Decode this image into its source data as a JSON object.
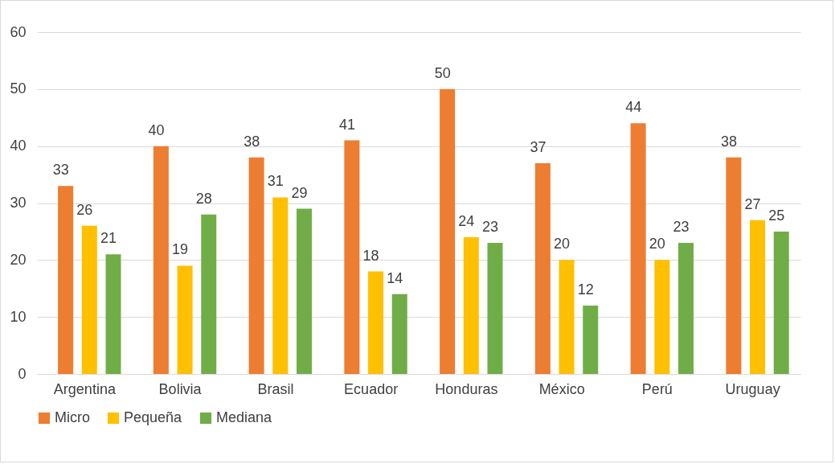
{
  "chart_data": {
    "type": "bar",
    "categories": [
      "Argentina",
      "Bolivia",
      "Brasil",
      "Ecuador",
      "Honduras",
      "México",
      "Perú",
      "Uruguay"
    ],
    "series": [
      {
        "name": "Micro",
        "color": "#ed7d31",
        "values": [
          33,
          40,
          38,
          41,
          50,
          37,
          44,
          38
        ]
      },
      {
        "name": "Pequeña",
        "color": "#ffc000",
        "values": [
          26,
          19,
          31,
          18,
          24,
          20,
          20,
          27
        ]
      },
      {
        "name": "Mediana",
        "color": "#70ad47",
        "values": [
          21,
          28,
          29,
          14,
          23,
          12,
          23,
          25
        ]
      }
    ],
    "ylim": [
      0,
      60
    ],
    "yticks": [
      0,
      10,
      20,
      30,
      40,
      50,
      60
    ],
    "grid": "y",
    "legend": "bottom",
    "data_labels": true
  }
}
